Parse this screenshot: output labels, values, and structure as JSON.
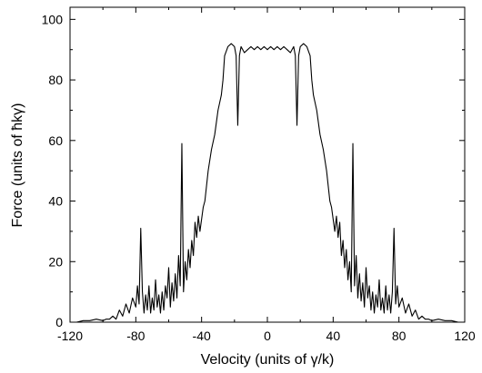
{
  "chart_data": {
    "type": "line",
    "xlabel": "Velocity (units of γ/k)",
    "ylabel": "Force (units of ħkγ)",
    "x": [
      -120,
      -116,
      -112,
      -108,
      -104,
      -100,
      -98,
      -96,
      -94,
      -92,
      -90,
      -88,
      -86,
      -84,
      -82,
      -80,
      -79,
      -78,
      -77,
      -76,
      -75,
      -74,
      -73,
      -72,
      -71,
      -70,
      -69,
      -68,
      -67,
      -66,
      -65,
      -64,
      -63,
      -62,
      -61,
      -60,
      -59,
      -58,
      -57,
      -56,
      -55,
      -54,
      -53,
      -52,
      -51,
      -50,
      -49,
      -48,
      -47,
      -46,
      -45,
      -44,
      -43,
      -42,
      -41,
      -40,
      -39,
      -38,
      -36,
      -34,
      -32,
      -30,
      -28,
      -27,
      -26,
      -24,
      -22,
      -20,
      -19,
      -18,
      -17,
      -16,
      -14,
      -12,
      -10,
      -8,
      -6,
      -4,
      -2,
      0,
      2,
      4,
      6,
      8,
      10,
      12,
      14,
      16,
      17,
      18,
      19,
      20,
      22,
      24,
      26,
      27,
      28,
      30,
      32,
      34,
      36,
      38,
      39,
      40,
      41,
      42,
      43,
      44,
      45,
      46,
      47,
      48,
      49,
      50,
      51,
      52,
      53,
      54,
      55,
      56,
      57,
      58,
      59,
      60,
      61,
      62,
      63,
      64,
      65,
      66,
      67,
      68,
      69,
      70,
      71,
      72,
      73,
      74,
      75,
      76,
      77,
      78,
      79,
      80,
      82,
      84,
      86,
      88,
      90,
      92,
      94,
      96,
      98,
      100,
      104,
      108,
      112,
      116,
      120
    ],
    "values": [
      0,
      0,
      0.5,
      0.5,
      1,
      0.5,
      1,
      1,
      2,
      1,
      4,
      2,
      6,
      3,
      8,
      5,
      12,
      6,
      31,
      10,
      3,
      9,
      4,
      12,
      3,
      8,
      4,
      14,
      5,
      9,
      3,
      10,
      4,
      12,
      8,
      18,
      5,
      13,
      7,
      16,
      8,
      22,
      12,
      59,
      10,
      20,
      14,
      24,
      18,
      27,
      22,
      33,
      28,
      35,
      30,
      34,
      38,
      40,
      50,
      57,
      62,
      70,
      75,
      80,
      88,
      91,
      92,
      91,
      88,
      65,
      88,
      91,
      89,
      90,
      91,
      90,
      91,
      90,
      91,
      90,
      91,
      90,
      91,
      90,
      91,
      90,
      89,
      91,
      88,
      65,
      88,
      91,
      92,
      91,
      88,
      80,
      75,
      70,
      62,
      57,
      50,
      40,
      38,
      34,
      30,
      35,
      28,
      33,
      22,
      27,
      18,
      24,
      14,
      20,
      10,
      59,
      12,
      22,
      8,
      16,
      7,
      13,
      5,
      18,
      8,
      12,
      4,
      10,
      3,
      9,
      5,
      14,
      4,
      8,
      3,
      12,
      4,
      9,
      3,
      10,
      31,
      6,
      12,
      5,
      8,
      3,
      6,
      2,
      4,
      1,
      2,
      1,
      1,
      0.5,
      1,
      0.5,
      0.5,
      0,
      0
    ],
    "color": "#000000",
    "xlim": [
      -120,
      120
    ],
    "ylim": [
      0,
      104
    ],
    "xticks": [
      -120,
      -80,
      -40,
      0,
      40,
      80,
      120
    ],
    "yticks": [
      0,
      20,
      40,
      60,
      80,
      100
    ],
    "xminorticks": [
      -100,
      -60,
      -20,
      20,
      60,
      100
    ],
    "yminorticks": [
      10,
      30,
      50,
      70,
      90
    ]
  }
}
